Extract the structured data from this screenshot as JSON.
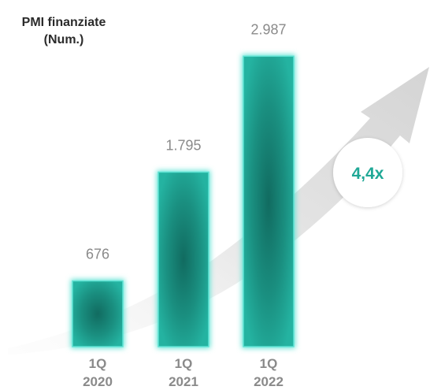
{
  "chart_data": {
    "type": "bar",
    "title_lines": [
      "PMI finanziate",
      "(Num.)"
    ],
    "categories": [
      [
        "1Q",
        "2020"
      ],
      [
        "1Q",
        "2021"
      ],
      [
        "1Q",
        "2022"
      ]
    ],
    "values": [
      676,
      1795,
      2987
    ],
    "value_labels": [
      "676",
      "1.795",
      "2.987"
    ],
    "growth_label": "4,4x",
    "ylim": [
      0,
      3200
    ],
    "grid": false,
    "colors": {
      "bar": "#20a898",
      "bar_dark": "#116b60",
      "bar_glow": "#5fe3d4",
      "badge_text": "#1fa896",
      "label": "#8a8a8a",
      "arrow": "#d8d8d8"
    }
  }
}
